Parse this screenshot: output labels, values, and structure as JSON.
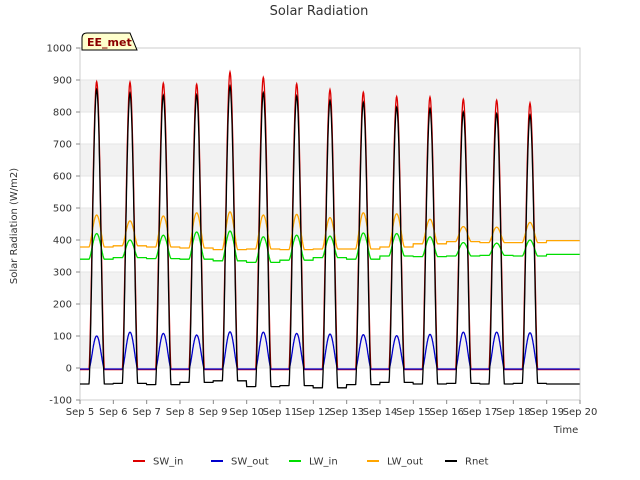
{
  "chart_data": {
    "type": "line",
    "title": "Solar Radiation",
    "xlabel": "Time",
    "ylabel": "Solar Radiation (W/m2)",
    "badge": "EE_met",
    "xlim": [
      5,
      20
    ],
    "ylim": [
      -100,
      1000
    ],
    "x_ticks": [
      "Sep 5",
      "Sep 6",
      "Sep 7",
      "Sep 8",
      "Sep 9",
      "Sep 10",
      "Sep 11",
      "Sep 12",
      "Sep 13",
      "Sep 14",
      "Sep 15",
      "Sep 16",
      "Sep 17",
      "Sep 18",
      "Sep 19",
      "Sep 20"
    ],
    "y_ticks": [
      -100,
      0,
      100,
      200,
      300,
      400,
      500,
      600,
      700,
      800,
      900,
      1000
    ],
    "grid": "horizontal bands",
    "legend_position": "bottom",
    "days": [
      "Sep 5",
      "Sep 6",
      "Sep 7",
      "Sep 8",
      "Sep 9",
      "Sep 10",
      "Sep 11",
      "Sep 12",
      "Sep 13",
      "Sep 14",
      "Sep 15",
      "Sep 16",
      "Sep 17",
      "Sep 18",
      "Sep 19"
    ],
    "series": [
      {
        "name": "SW_in",
        "color": "#dd0000",
        "night": [
          -5,
          -5,
          -5,
          -5,
          -5,
          -5,
          -5,
          -5,
          -5,
          -5,
          -5,
          -5,
          -5,
          -5,
          -5
        ],
        "peak": [
          895,
          893,
          890,
          887,
          925,
          908,
          888,
          870,
          862,
          848,
          847,
          840,
          837,
          828,
          0
        ]
      },
      {
        "name": "SW_out",
        "color": "#0000cc",
        "night": [
          -3,
          -3,
          -3,
          -3,
          -3,
          -3,
          -3,
          -3,
          -3,
          -3,
          -3,
          -3,
          -3,
          -3,
          -3
        ],
        "peak": [
          100,
          112,
          108,
          103,
          113,
          112,
          108,
          106,
          104,
          101,
          105,
          112,
          112,
          110,
          0
        ]
      },
      {
        "name": "LW_in",
        "color": "#00dd00",
        "night": [
          340,
          345,
          342,
          340,
          335,
          330,
          337,
          345,
          340,
          350,
          348,
          350,
          352,
          350,
          355
        ],
        "peak": [
          420,
          400,
          415,
          425,
          428,
          410,
          415,
          412,
          422,
          420,
          410,
          392,
          390,
          400,
          0
        ]
      },
      {
        "name": "LW_out",
        "color": "#ffa500",
        "night": [
          378,
          382,
          378,
          375,
          370,
          372,
          370,
          372,
          372,
          378,
          388,
          395,
          392,
          392,
          398
        ],
        "peak": [
          478,
          460,
          475,
          485,
          488,
          478,
          480,
          470,
          485,
          482,
          465,
          442,
          440,
          455,
          0
        ]
      },
      {
        "name": "Rnet",
        "color": "#000000",
        "night": [
          -50,
          -48,
          -52,
          -45,
          -40,
          -58,
          -55,
          -62,
          -52,
          -45,
          -50,
          -48,
          -50,
          -48,
          -50
        ],
        "peak": [
          870,
          858,
          852,
          853,
          880,
          860,
          850,
          835,
          830,
          815,
          810,
          800,
          795,
          790,
          0
        ]
      }
    ]
  }
}
